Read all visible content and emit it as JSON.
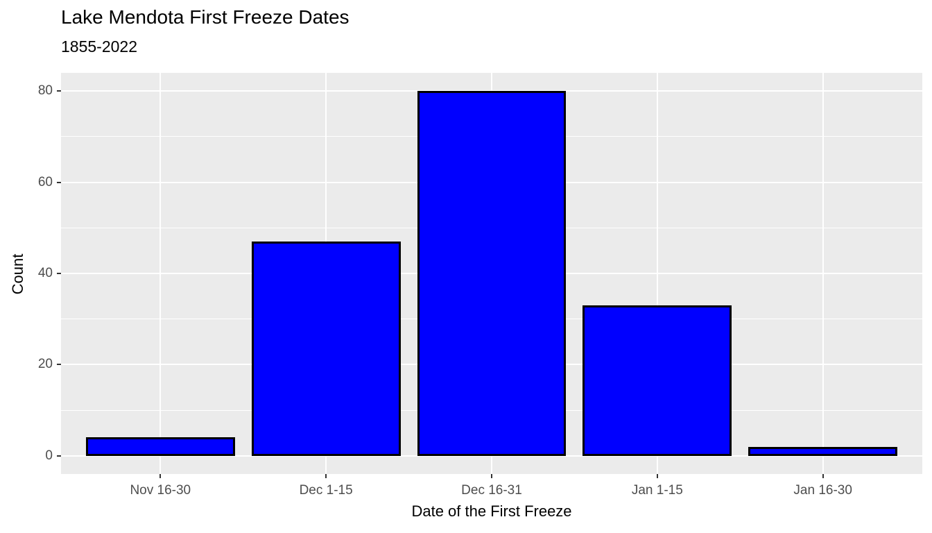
{
  "chart_data": {
    "type": "bar",
    "title": "Lake Mendota First Freeze Dates",
    "subtitle": "1855-2022",
    "xlabel": "Date of the First Freeze",
    "ylabel": "Count",
    "categories": [
      "Nov 16-30",
      "Dec 1-15",
      "Dec 16-31",
      "Jan 1-15",
      "Jan 16-30"
    ],
    "values": [
      4,
      47,
      80,
      33,
      2
    ],
    "ylim": [
      0,
      80
    ],
    "yticks": [
      0,
      20,
      40,
      60,
      80
    ],
    "yticks_minor": [
      10,
      30,
      50,
      70
    ],
    "grid": true,
    "legend": "none",
    "colors": {
      "bar_fill": "#0000FF",
      "bar_border": "#000000",
      "panel_background": "#EBEBEB",
      "gridline": "#FFFFFF",
      "tick_label": "#4D4D4D",
      "axis_title": "#000000",
      "tick_mark": "#333333"
    }
  }
}
